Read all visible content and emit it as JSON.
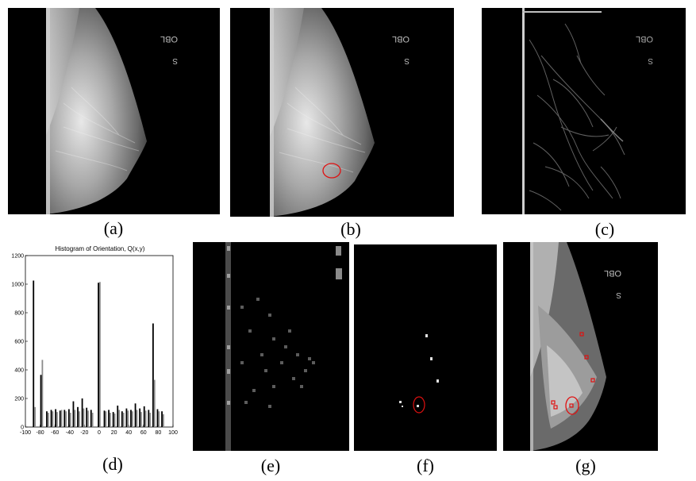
{
  "captions": [
    "(a)",
    "(b)",
    "(c)",
    "(d)",
    "(e)",
    "(f)",
    "(g)"
  ],
  "film_label": {
    "line1": "OBL",
    "line2": "S"
  },
  "colors": {
    "marker_red": "#e01010",
    "background": "#000000"
  },
  "chart_data": {
    "type": "bar",
    "title": "Histogram of Orientation, Q(x,y)",
    "xlabel": "",
    "ylabel": "",
    "xlim": [
      -100,
      100
    ],
    "ylim": [
      0,
      1200
    ],
    "xticks": [
      -100,
      -80,
      -60,
      -40,
      -20,
      0,
      20,
      40,
      60,
      80,
      100
    ],
    "yticks": [
      0,
      200,
      400,
      600,
      800,
      1000,
      1200
    ],
    "grid": false,
    "series": [
      {
        "x": [
          -89,
          -79,
          -71,
          -65,
          -59,
          -53,
          -47,
          -41,
          -35,
          -29,
          -23,
          -17,
          -11,
          -1,
          7,
          13,
          19,
          25,
          31,
          37,
          43,
          49,
          55,
          61,
          67,
          73,
          79,
          85
        ],
        "values": [
          1025,
          365,
          110,
          120,
          125,
          115,
          120,
          125,
          180,
          140,
          200,
          135,
          120,
          1010,
          115,
          120,
          105,
          150,
          110,
          130,
          120,
          165,
          130,
          145,
          120,
          725,
          125,
          110
        ]
      },
      {
        "x": [
          -87,
          -77,
          -69,
          -63,
          -57,
          -51,
          -45,
          -39,
          -33,
          -27,
          -21,
          -15,
          -9,
          1,
          9,
          15,
          21,
          27,
          33,
          39,
          45,
          51,
          57,
          63,
          69,
          75,
          81,
          87
        ],
        "values": [
          140,
          470,
          100,
          110,
          105,
          120,
          110,
          100,
          120,
          110,
          130,
          115,
          100,
          1015,
          110,
          100,
          95,
          120,
          100,
          115,
          110,
          120,
          105,
          115,
          100,
          330,
          110,
          90
        ]
      }
    ]
  }
}
